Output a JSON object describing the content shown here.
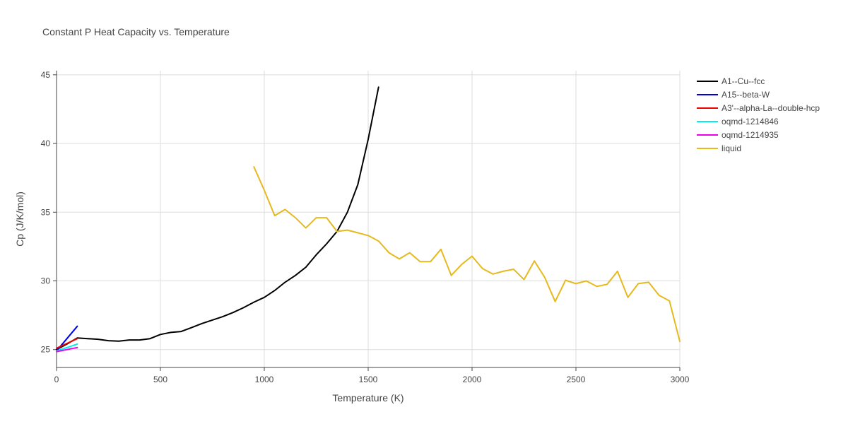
{
  "chart_data": {
    "type": "line",
    "title": "Constant P Heat Capacity vs. Temperature",
    "xlabel": "Temperature (K)",
    "ylabel": "Cp (J/K/mol)",
    "xlim": [
      0,
      3000
    ],
    "ylim": [
      23.7,
      45.3
    ],
    "xticks": [
      0,
      500,
      1000,
      1500,
      2000,
      2500,
      3000
    ],
    "yticks": [
      25,
      30,
      35,
      40,
      45
    ],
    "grid": true,
    "legend_position": "top-right",
    "series": [
      {
        "name": "A1--Cu--fcc",
        "color": "#000000",
        "x": [
          0,
          50,
          100,
          150,
          200,
          250,
          300,
          350,
          400,
          450,
          500,
          550,
          600,
          650,
          700,
          750,
          800,
          850,
          900,
          950,
          1000,
          1050,
          1100,
          1150,
          1200,
          1250,
          1300,
          1350,
          1400,
          1450,
          1500,
          1550
        ],
        "y": [
          25.0,
          25.4,
          25.85,
          25.8,
          25.75,
          25.65,
          25.62,
          25.7,
          25.7,
          25.8,
          26.1,
          26.25,
          26.32,
          26.6,
          26.9,
          27.15,
          27.4,
          27.7,
          28.05,
          28.45,
          28.8,
          29.3,
          29.9,
          30.4,
          31.0,
          31.9,
          32.7,
          33.6,
          35.0,
          37.0,
          40.3,
          44.1
        ]
      },
      {
        "name": "A15--beta-W",
        "color": "#0000ee",
        "x": [
          0,
          50,
          100
        ],
        "y": [
          24.9,
          25.8,
          26.7
        ]
      },
      {
        "name": "A3'--alpha-La--double-hcp",
        "color": "#ee0000",
        "x": [
          0,
          50,
          100
        ],
        "y": [
          25.1,
          25.45,
          25.8
        ]
      },
      {
        "name": "oqmd-1214846",
        "color": "#00eeee",
        "x": [
          0,
          50,
          100
        ],
        "y": [
          24.9,
          25.15,
          25.4
        ]
      },
      {
        "name": "oqmd-1214935",
        "color": "#ee00ee",
        "x": [
          0,
          50,
          100
        ],
        "y": [
          24.85,
          25.0,
          25.15
        ]
      },
      {
        "name": "liquid",
        "color": "#e6b91e",
        "x": [
          950,
          1000,
          1050,
          1100,
          1150,
          1200,
          1250,
          1300,
          1350,
          1400,
          1450,
          1500,
          1550,
          1600,
          1650,
          1700,
          1750,
          1800,
          1850,
          1900,
          1950,
          2000,
          2050,
          2100,
          2150,
          2200,
          2250,
          2300,
          2350,
          2400,
          2450,
          2500,
          2550,
          2600,
          2650,
          2700,
          2750,
          2800,
          2850,
          2900,
          2950,
          3000
        ],
        "y": [
          38.3,
          36.6,
          34.75,
          35.2,
          34.6,
          33.85,
          34.6,
          34.6,
          33.6,
          33.7,
          33.5,
          33.3,
          32.9,
          32.05,
          31.6,
          32.05,
          31.4,
          31.4,
          32.3,
          30.4,
          31.2,
          31.8,
          30.9,
          30.5,
          30.7,
          30.85,
          30.1,
          31.45,
          30.25,
          28.5,
          30.05,
          29.8,
          30.0,
          29.6,
          29.75,
          30.7,
          28.8,
          29.8,
          29.9,
          28.95,
          28.55,
          25.6
        ]
      }
    ]
  }
}
